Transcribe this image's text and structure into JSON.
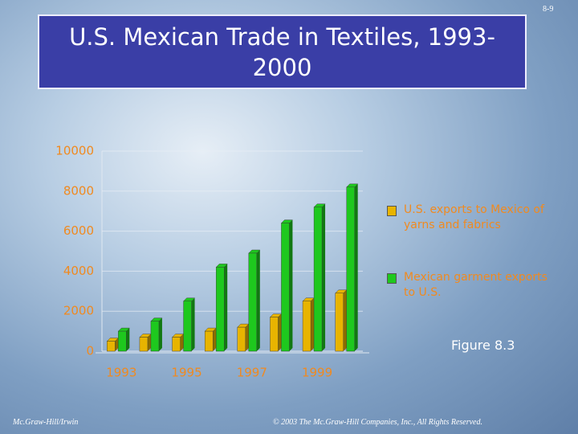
{
  "slide": {
    "page_number": "8-9",
    "figure_label": "Figure 8.3",
    "footer_left": "Mc.Graw-Hill/Irwin",
    "footer_right": "© 2003 The Mc.Graw-Hill Companies, Inc., All Rights Reserved."
  },
  "chart_data": {
    "type": "bar",
    "title": "U.S. Mexican Trade in Textiles, 1993-2000",
    "categories": [
      "1993",
      null,
      "1995",
      null,
      "1997",
      null,
      "1999",
      null
    ],
    "series": [
      {
        "name": "U.S. exports to Mexico of yarns and fabrics",
        "color": "#e8b400",
        "values": [
          500,
          700,
          700,
          1000,
          1200,
          1700,
          2500,
          2900
        ]
      },
      {
        "name": "Mexican garment exports to U.S.",
        "color": "#1ec81e",
        "values": [
          1000,
          1500,
          2500,
          4200,
          4900,
          6400,
          7200,
          8200
        ]
      }
    ],
    "ylim": [
      0,
      10000
    ],
    "yticks": [
      0,
      2000,
      4000,
      6000,
      8000,
      10000
    ],
    "grid": true
  }
}
